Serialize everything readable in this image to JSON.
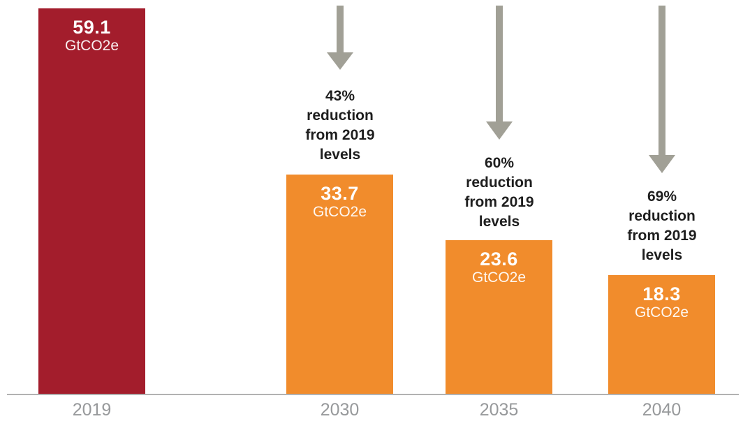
{
  "chart_data": {
    "type": "bar",
    "title": "",
    "xlabel": "",
    "ylabel": "",
    "categories": [
      "2019",
      "2030",
      "2035",
      "2040"
    ],
    "values": [
      59.1,
      33.7,
      23.6,
      18.3
    ],
    "unit": "GtCO2e",
    "ylim": [
      0,
      59.1
    ],
    "grid": false,
    "legend": false,
    "annotations": [
      "",
      "43% reduction from 2019 levels",
      "60% reduction from 2019 levels",
      "69% reduction from 2019 levels"
    ],
    "colors": {
      "bar_2019": "#A31D2C",
      "bar_future": "#F18C2C",
      "arrow": "#A1A096",
      "axis": "#B2B2B2",
      "tick_label": "#97999B",
      "annotation_text": "#1E1E1E",
      "bar_label": "#FFFFFF"
    }
  },
  "columns": [
    {
      "year": "2019",
      "value": "59.1",
      "unit": "GtCO2e",
      "color": "#A31D2C",
      "annotation": ""
    },
    {
      "year": "2030",
      "value": "33.7",
      "unit": "GtCO2e",
      "color": "#F18C2C",
      "annotation": "43%\nreduction\nfrom 2019\nlevels"
    },
    {
      "year": "2035",
      "value": "23.6",
      "unit": "GtCO2e",
      "color": "#F18C2C",
      "annotation": "60%\nreduction\nfrom 2019\nlevels"
    },
    {
      "year": "2040",
      "value": "18.3",
      "unit": "GtCO2e",
      "color": "#F18C2C",
      "annotation": "69%\nreduction\nfrom 2019\nlevels"
    }
  ]
}
